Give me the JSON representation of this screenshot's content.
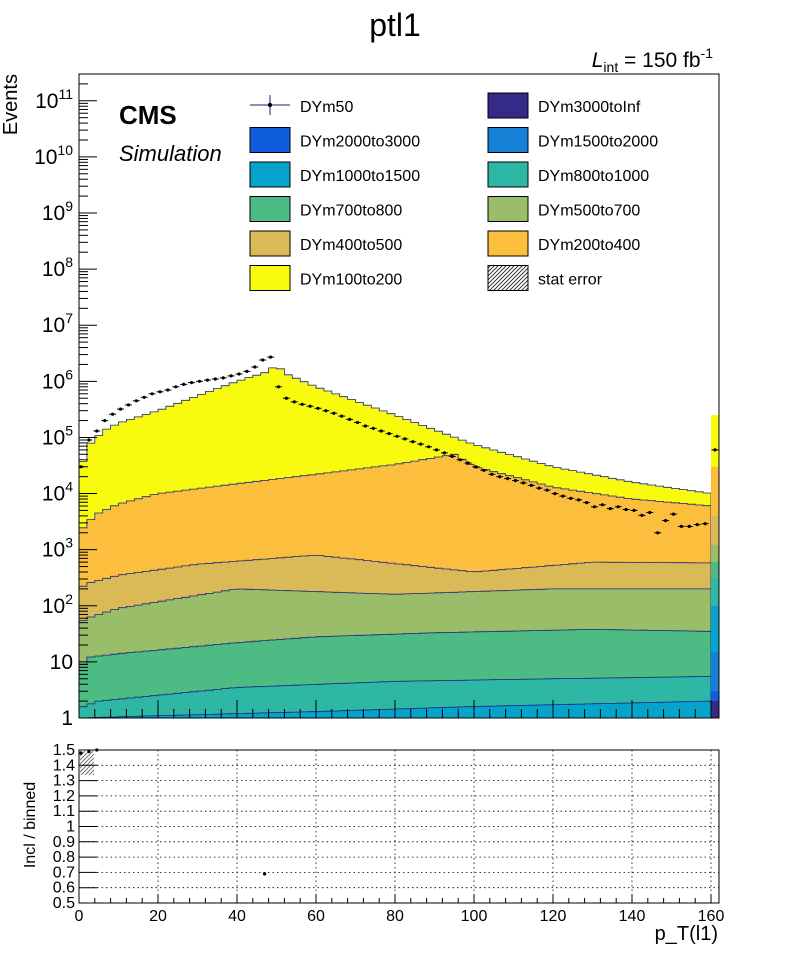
{
  "figure": {
    "title": "ptl1",
    "lumi_prefix": "L",
    "lumi_sub": "int",
    "lumi_value": " = 150 fb",
    "lumi_sup": "-1",
    "cms_label": "CMS",
    "cms_sublabel": "Simulation"
  },
  "colors": {
    "DYm3000toInf": "#352a87",
    "DYm2000to3000": "#0f5cdd",
    "DYm1500to2000": "#1481d6",
    "DYm1000to1500": "#06a4ca",
    "DYm800to1000": "#2eb7a4",
    "DYm700to800": "#4cbb84",
    "DYm500to700": "#99bd69",
    "DYm400to500": "#d9ba56",
    "DYm200to400": "#fcbe3d",
    "DYm100to200": "#f9fb0e",
    "outline": "#1a237e"
  },
  "chart_data": [
    {
      "type": "area",
      "panel": "main",
      "ylabel": "Events",
      "yscale": "log",
      "ylim": [
        1,
        300000000000
      ],
      "xlim": [
        0,
        161
      ],
      "y_tick_labels": [
        "1",
        "10",
        "10^2",
        "10^3",
        "10^4",
        "10^5",
        "10^6",
        "10^7",
        "10^8",
        "10^9",
        "10^10",
        "10^11"
      ],
      "legend": [
        {
          "name": "DYm50",
          "style": "marker"
        },
        {
          "name": "DYm3000toInf",
          "style": "fill"
        },
        {
          "name": "DYm2000to3000",
          "style": "fill"
        },
        {
          "name": "DYm1500to2000",
          "style": "fill"
        },
        {
          "name": "DYm1000to1500",
          "style": "fill"
        },
        {
          "name": "DYm800to1000",
          "style": "fill"
        },
        {
          "name": "DYm700to800",
          "style": "fill"
        },
        {
          "name": "DYm500to700",
          "style": "fill"
        },
        {
          "name": "DYm400to500",
          "style": "fill"
        },
        {
          "name": "DYm200to400",
          "style": "fill"
        },
        {
          "name": "DYm100to200",
          "style": "fill"
        },
        {
          "name": "stat error",
          "style": "hatch"
        }
      ],
      "stack_cumulative_anchors": {
        "DYm100to200": [
          [
            0,
            20000
          ],
          [
            2,
            70000
          ],
          [
            4,
            90000
          ],
          [
            6,
            130000
          ],
          [
            10,
            180000
          ],
          [
            20,
            300000
          ],
          [
            30,
            550000
          ],
          [
            40,
            1000000
          ],
          [
            48,
            1500000
          ],
          [
            50,
            2000000
          ],
          [
            52,
            1400000
          ],
          [
            60,
            800000
          ],
          [
            80,
            250000
          ],
          [
            100,
            75000
          ],
          [
            120,
            30000
          ],
          [
            140,
            16000
          ],
          [
            160,
            10000
          ]
        ],
        "DYm200to400": [
          [
            0,
            2000
          ],
          [
            2,
            3000
          ],
          [
            5,
            4500
          ],
          [
            10,
            6500
          ],
          [
            20,
            10000
          ],
          [
            40,
            15000
          ],
          [
            60,
            22000
          ],
          [
            80,
            33000
          ],
          [
            95,
            50000
          ],
          [
            100,
            30000
          ],
          [
            110,
            20000
          ],
          [
            120,
            13000
          ],
          [
            140,
            8000
          ],
          [
            160,
            6000
          ]
        ],
        "DYm400to500": [
          [
            0,
            200
          ],
          [
            2,
            250
          ],
          [
            10,
            350
          ],
          [
            30,
            550
          ],
          [
            60,
            800
          ],
          [
            100,
            400
          ],
          [
            130,
            600
          ],
          [
            160,
            580
          ]
        ],
        "DYm500to700": [
          [
            0,
            50
          ],
          [
            2,
            60
          ],
          [
            10,
            90
          ],
          [
            40,
            200
          ],
          [
            80,
            160
          ],
          [
            120,
            200
          ],
          [
            160,
            200
          ]
        ],
        "DYm700to800": [
          [
            0,
            7
          ],
          [
            2,
            12
          ],
          [
            10,
            14
          ],
          [
            40,
            22
          ],
          [
            60,
            28
          ],
          [
            90,
            33
          ],
          [
            130,
            38
          ],
          [
            160,
            35
          ]
        ],
        "DYm800to1000": [
          [
            0,
            1.5
          ],
          [
            5,
            2
          ],
          [
            40,
            3.5
          ],
          [
            80,
            4.5
          ],
          [
            120,
            5
          ],
          [
            160,
            5.5
          ]
        ],
        "DYm1000to1500": [
          [
            0,
            1
          ],
          [
            20,
            1.1
          ],
          [
            60,
            1.3
          ],
          [
            100,
            1.6
          ],
          [
            160,
            2
          ]
        ]
      },
      "overflow_column": [
        {
          "name": "DYm3000toInf",
          "y": 2
        },
        {
          "name": "DYm2000to3000",
          "y": 3
        },
        {
          "name": "DYm1500to2000",
          "y": 15
        },
        {
          "name": "DYm1000to1500",
          "y": 100
        },
        {
          "name": "DYm800to1000",
          "y": 300
        },
        {
          "name": "DYm700to800",
          "y": 600
        },
        {
          "name": "DYm500to700",
          "y": 1200
        },
        {
          "name": "DYm400to500",
          "y": 4000
        },
        {
          "name": "DYm200to400",
          "y": 30000
        },
        {
          "name": "DYm100to200",
          "y": 250000
        }
      ],
      "series": [
        {
          "name": "DYm50",
          "x": [
            0.5,
            2.5,
            4.5,
            6.5,
            8.5,
            10.5,
            12.5,
            14.5,
            16.5,
            18.5,
            20.5,
            22.5,
            24.5,
            26.5,
            28.5,
            30.5,
            32.5,
            34.5,
            36.5,
            38.5,
            40.5,
            42.5,
            44.5,
            46.5,
            48.5,
            50.5,
            52.5,
            54.5,
            56.5,
            58.5,
            60.5,
            62.5,
            64.5,
            66.5,
            68.5,
            70.5,
            72.5,
            74.5,
            76.5,
            78.5,
            80.5,
            82.5,
            84.5,
            86.5,
            88.5,
            90.5,
            92.5,
            94.5,
            96.5,
            98.5,
            100.5,
            102.5,
            104.5,
            106.5,
            108.5,
            110.5,
            112.5,
            114.5,
            116.5,
            118.5,
            120.5,
            122.5,
            124.5,
            126.5,
            128.5,
            130.5,
            132.5,
            134.5,
            136.5,
            138.5,
            140.5,
            142.5,
            144.5,
            146.5,
            148.5,
            150.5,
            152.5,
            154.5,
            156.5,
            158.5,
            160.5
          ],
          "y": [
            30000,
            90000,
            130000,
            200000,
            260000,
            320000,
            380000,
            450000,
            520000,
            600000,
            650000,
            700000,
            800000,
            880000,
            950000,
            1000000,
            1050000,
            1100000,
            1150000,
            1250000,
            1350000,
            1500000,
            1800000,
            2400000,
            2700000,
            800000,
            500000,
            430000,
            390000,
            360000,
            330000,
            300000,
            270000,
            240000,
            210000,
            185000,
            160000,
            145000,
            130000,
            117000,
            105000,
            94000,
            84000,
            76000,
            68000,
            60000,
            53000,
            46000,
            40000,
            35000,
            30000,
            26000,
            22000,
            20000,
            18500,
            17000,
            15500,
            14000,
            12500,
            11500,
            10000,
            9000,
            8200,
            7700,
            6900,
            5800,
            6300,
            5400,
            5800,
            5200,
            5000,
            4100,
            4600,
            2000,
            3300,
            4300,
            2600,
            2600,
            2800,
            2900,
            60000
          ]
        }
      ]
    },
    {
      "type": "scatter",
      "panel": "ratio",
      "ylabel": "Incl / binned",
      "xlabel": "p_T(l1)",
      "xlim": [
        0,
        161
      ],
      "ylim": [
        0.5,
        1.5
      ],
      "x_ticks": [
        0,
        20,
        40,
        60,
        80,
        100,
        120,
        140,
        160
      ],
      "y_ticks": [
        0.5,
        0.6,
        0.7,
        0.8,
        0.9,
        1,
        1.1,
        1.2,
        1.3,
        1.4,
        1.5
      ],
      "series": [
        {
          "name": "",
          "x": [
            0.5,
            2.5,
            4.5,
            47
          ],
          "y": [
            1.48,
            1.49,
            1.5,
            0.69
          ]
        }
      ]
    }
  ]
}
